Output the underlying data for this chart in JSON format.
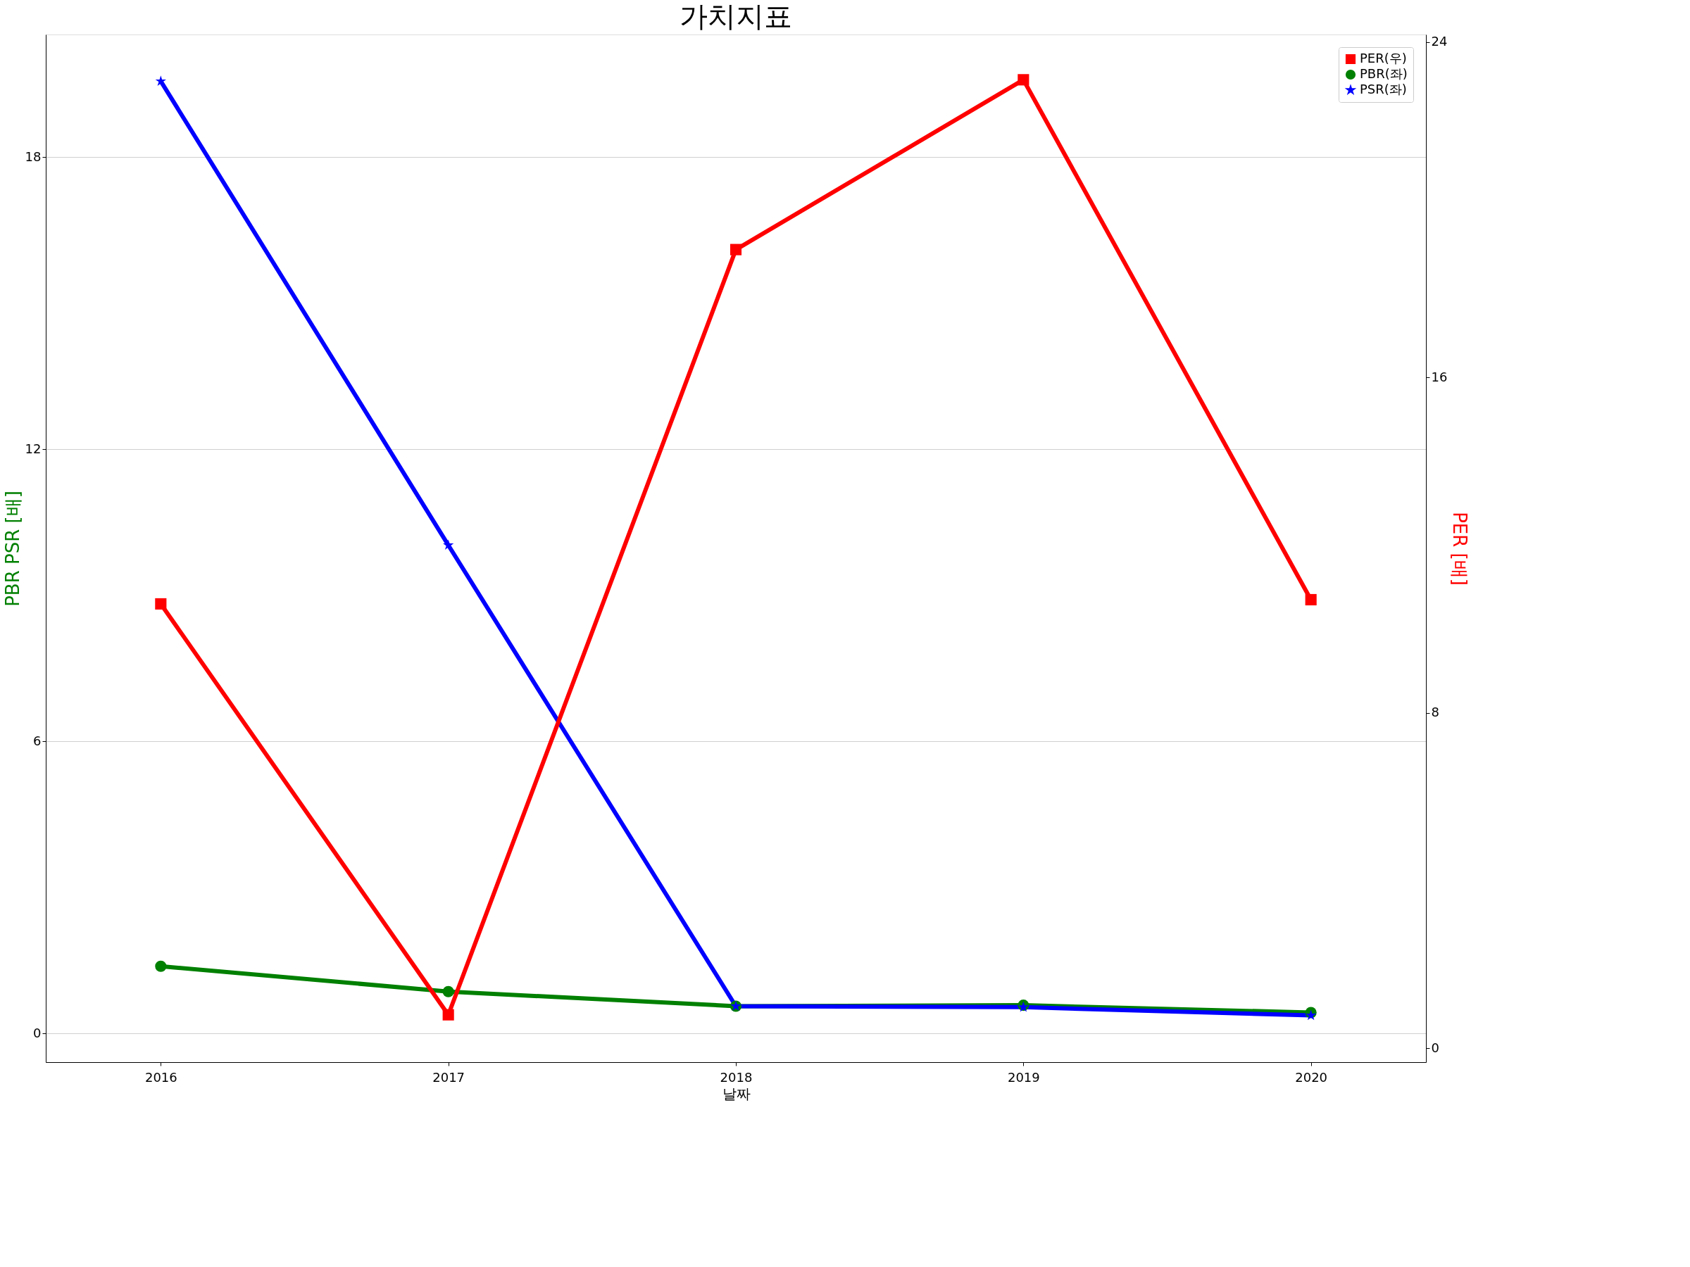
{
  "chart_data": {
    "type": "line",
    "title": "가치지표",
    "xlabel": "날짜",
    "ylabel": "PBR PSR [배]",
    "y2label": "PER [배]",
    "categories": [
      "2016",
      "2017",
      "2018",
      "2019",
      "2020"
    ],
    "series": [
      {
        "name": "PER(우)",
        "color": "#ff0000",
        "marker": "square",
        "axis": "y2",
        "values": [
          10.6,
          0.8,
          19.05,
          23.1,
          10.7
        ]
      },
      {
        "name": "PBR(좌)",
        "color": "#008000",
        "marker": "circle",
        "values": [
          1.38,
          0.86,
          0.56,
          0.58,
          0.43
        ]
      },
      {
        "name": "PSR(좌)",
        "color": "#0000ff",
        "marker": "star",
        "values": [
          19.56,
          10.03,
          0.56,
          0.54,
          0.37
        ]
      }
    ],
    "ylim": [
      -0.59,
      20.52
    ],
    "yticks": [
      0,
      6,
      12,
      18
    ],
    "y2lim": [
      -0.33,
      24.18
    ],
    "y2ticks": [
      0,
      8,
      16,
      24
    ],
    "grid": "y",
    "legend": "top right",
    "line_style": "solid"
  }
}
